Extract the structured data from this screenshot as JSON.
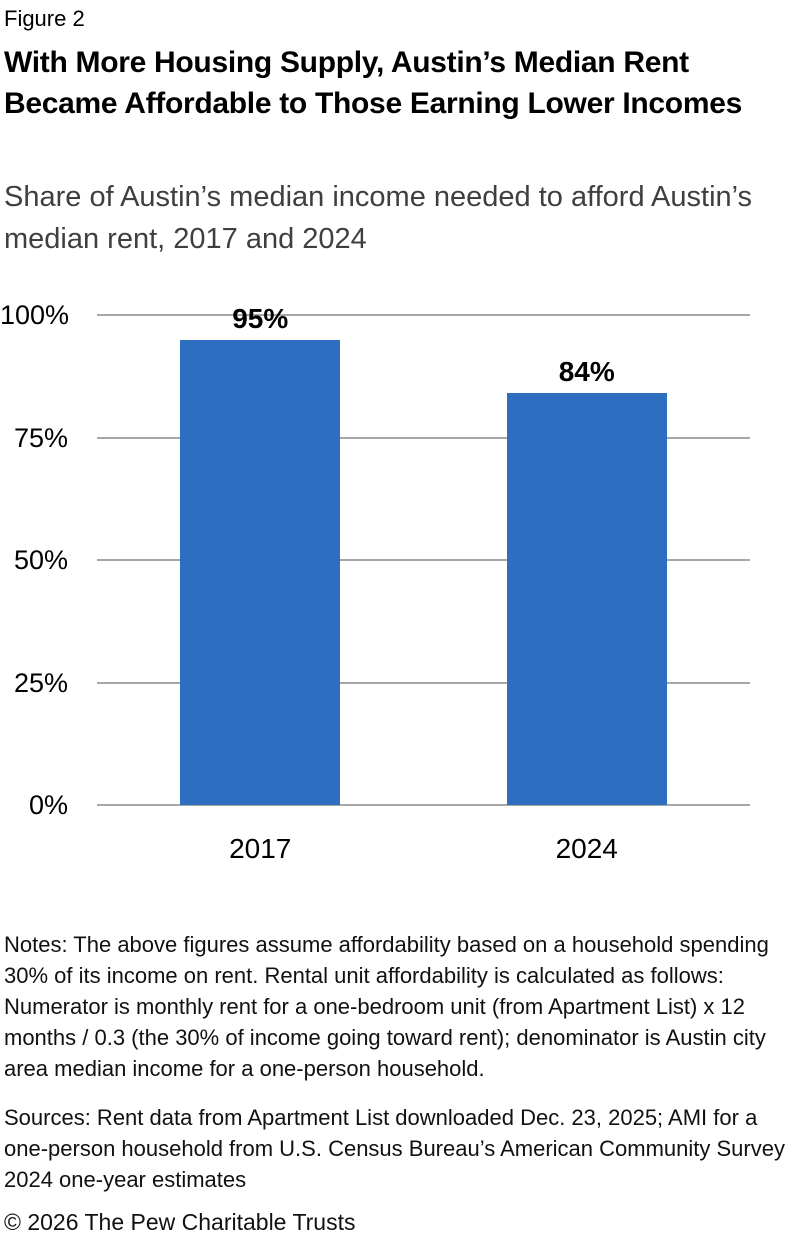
{
  "figure_label": "Figure 2",
  "title": "With More Housing Supply, Austin’s Median Rent Became Affordable to Those Earning Lower Incomes",
  "subtitle": "Share of Austin’s median income needed to afford Austin’s median rent, 2017 and 2024",
  "chart_data": {
    "type": "bar",
    "categories": [
      "2017",
      "2024"
    ],
    "values": [
      95,
      84
    ],
    "value_labels": [
      "95%",
      "84%"
    ],
    "ytick_labels": [
      "100%",
      "75%",
      "50%",
      "25%",
      "0%"
    ],
    "ytick_values": [
      100,
      75,
      50,
      25,
      0
    ],
    "ylim": [
      0,
      100
    ],
    "grid": true,
    "legend": "none",
    "bar_color": "#2D6EC0",
    "gridline_color": "#A7A7A7",
    "title": "With More Housing Supply, Austin’s Median Rent Became Affordable to Those Earning Lower Incomes",
    "xlabel": "",
    "ylabel": ""
  },
  "notes": "Notes: The above figures assume affordability based on a household spending 30% of its income on rent. Rental unit affordability is calculated as follows: Numerator is monthly rent for a one-bedroom unit (from Apartment List) x 12 months / 0.3 (the 30% of income going toward rent); denominator is Austin city area median income for a one-person household.",
  "sources": "Sources: Rent data from Apartment List downloaded Dec. 23, 2025; AMI for a one-person household from U.S. Census Bureau’s American Community Survey 2024 one-year estimates",
  "copyright": "© 2026 The Pew Charitable Trusts"
}
